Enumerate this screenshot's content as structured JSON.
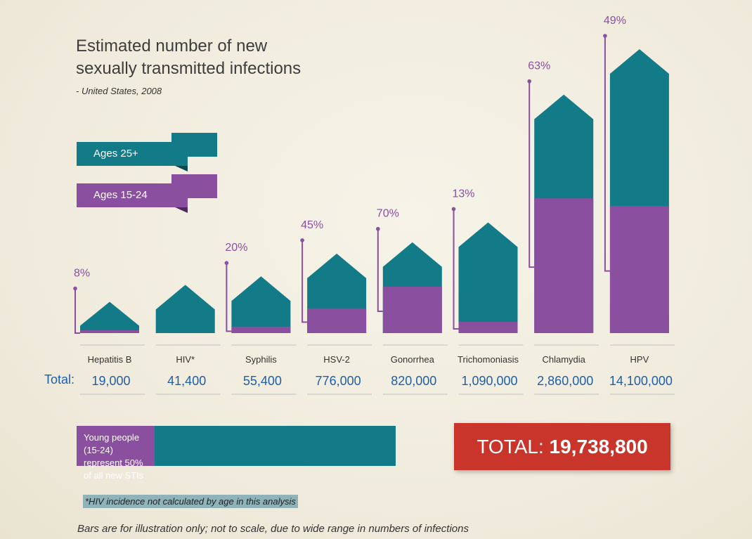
{
  "title": {
    "line1": "Estimated number of new",
    "line2": "sexually transmitted infections",
    "subtitle": "- United States, 2008"
  },
  "legend": {
    "adult": "Ages 25+",
    "young": "Ages 15-24"
  },
  "colors": {
    "adult": "#137a87",
    "young": "#8b4fa0",
    "total_text": "#1f5fa8",
    "total_box": "#c9352b"
  },
  "totals_label": "Total:",
  "chart_data": {
    "type": "bar",
    "title": "Estimated number of new sexually transmitted infections - United States, 2008",
    "categories": [
      "Hepatitis B",
      "HIV*",
      "Syphilis",
      "HSV-2",
      "Gonorrhea",
      "Trichomoniasis",
      "Chlamydia",
      "HPV"
    ],
    "totals": [
      "19,000",
      "41,400",
      "55,400",
      "776,000",
      "820,000",
      "1,090,000",
      "2,860,000",
      "14,100,000"
    ],
    "total_values": [
      19000,
      41400,
      55400,
      776000,
      820000,
      1090000,
      2860000,
      14100000
    ],
    "percent_young_labels": [
      "8%",
      "",
      "20%",
      "45%",
      "70%",
      "13%",
      "63%",
      "49%"
    ],
    "percent_young": [
      8,
      null,
      20,
      45,
      70,
      13,
      63,
      49
    ],
    "series": [
      {
        "name": "Ages 15-24",
        "role": "young"
      },
      {
        "name": "Ages 25+",
        "role": "adult"
      }
    ],
    "illustrative_heights": [
      0.11,
      0.17,
      0.2,
      0.28,
      0.32,
      0.39,
      0.84,
      1.0
    ],
    "note": "Bars are for illustration only; not to scale"
  },
  "young_people": {
    "text": "Young people (15-24) represent 50% of all new STIs",
    "line1": "Young people (15-24)",
    "line2": "represent 50% of all new STIs",
    "share": 0.5
  },
  "grand_total": {
    "label": "TOTAL:",
    "value": "19,738,800"
  },
  "footnote": "*HIV incidence not calculated by age in this analysis",
  "disclaimer": "Bars are for illustration only; not to scale, due to wide range in numbers of infections"
}
